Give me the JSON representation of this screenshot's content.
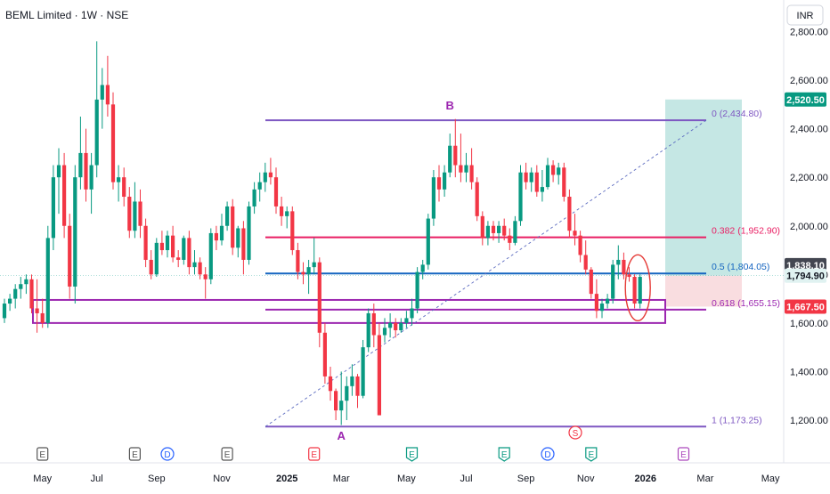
{
  "header": {
    "title": "BEML Limited · 1W · NSE",
    "currency": "INR"
  },
  "colors": {
    "up": "#089981",
    "down": "#f23645",
    "fib0": "#7e57c2",
    "fib382": "#e91e63",
    "fib05": "#1565c0",
    "fib618": "#9c27b0",
    "fib1": "#7e57c2",
    "zone": "#9c27b0",
    "target": "#b2dfdb",
    "stop": "#f8d7da",
    "circle": "#e53935",
    "event_grey": "#555555",
    "event_blue": "#2962ff",
    "event_green": "#089981",
    "event_purple": "#ab47bc",
    "event_red": "#f23645"
  },
  "price_tags": [
    {
      "text": "2,520.50",
      "price": 2520.5,
      "bg": "#089981"
    },
    {
      "text": "1,838.10",
      "price": 1838.1,
      "bg": "#434651"
    },
    {
      "text": "1,794.90",
      "price": 1794.9,
      "bg": "#e0f2f1",
      "fg": "#131722"
    },
    {
      "text": "1,667.50",
      "price": 1667.5,
      "bg": "#f23645"
    }
  ],
  "fib_levels": [
    {
      "label": "0 (2,434.80)",
      "price": 2434.8,
      "key": "fib0"
    },
    {
      "label": "0.382 (1,952.90)",
      "price": 1952.9,
      "key": "fib382"
    },
    {
      "label": "0.5 (1,804.05)",
      "price": 1804.05,
      "key": "fib05"
    },
    {
      "label": "0.618 (1,655.15)",
      "price": 1655.15,
      "key": "fib618"
    },
    {
      "label": "1 (1,173.25)",
      "price": 1173.25,
      "key": "fib1"
    }
  ],
  "wave_labels": [
    {
      "text": "A",
      "idx": 62,
      "price": 1120
    },
    {
      "text": "B",
      "idx": 82,
      "price": 2480
    }
  ],
  "events": [
    {
      "letter": "E",
      "idx": 7,
      "style": "grey"
    },
    {
      "letter": "E",
      "idx": 24,
      "style": "grey"
    },
    {
      "letter": "D",
      "idx": 30,
      "style": "blue"
    },
    {
      "letter": "E",
      "idx": 41,
      "style": "grey"
    },
    {
      "letter": "E",
      "idx": 57,
      "style": "red"
    },
    {
      "letter": "E",
      "idx": 75,
      "style": "green"
    },
    {
      "letter": "E",
      "idx": 92,
      "style": "green"
    },
    {
      "letter": "D",
      "idx": 100,
      "style": "blue"
    },
    {
      "letter": "E",
      "idx": 108,
      "style": "green"
    },
    {
      "letter": "E",
      "idx": 125,
      "style": "purple"
    }
  ],
  "chart_data": {
    "type": "candlestick",
    "title": "BEML Limited · 1W · NSE",
    "ylim": [
      1100,
      2850
    ],
    "y_ticks": [
      1200,
      1400,
      1600,
      1800,
      2000,
      2200,
      2400,
      2600,
      2800
    ],
    "y_tick_labels": [
      "1,200.00",
      "1,400.00",
      "1,600.00",
      "1,800.00",
      "2,000.00",
      "2,200.00",
      "2,400.00",
      "2,600.00",
      "2,800.00"
    ],
    "x_ticks": [
      {
        "label": "May",
        "idx": 7
      },
      {
        "label": "Jul",
        "idx": 17
      },
      {
        "label": "Sep",
        "idx": 28
      },
      {
        "label": "Nov",
        "idx": 40
      },
      {
        "label": "2025",
        "idx": 52,
        "bold": true
      },
      {
        "label": "Mar",
        "idx": 62
      },
      {
        "label": "May",
        "idx": 74
      },
      {
        "label": "Jul",
        "idx": 85
      },
      {
        "label": "Sep",
        "idx": 96
      },
      {
        "label": "Nov",
        "idx": 107
      },
      {
        "label": "2026",
        "idx": 118,
        "bold": true
      },
      {
        "label": "Mar",
        "idx": 129
      },
      {
        "label": "May",
        "idx": 141
      }
    ],
    "candles": [
      [
        1620,
        1700,
        1600,
        1680
      ],
      [
        1680,
        1720,
        1650,
        1700
      ],
      [
        1700,
        1760,
        1660,
        1740
      ],
      [
        1740,
        1790,
        1700,
        1760
      ],
      [
        1760,
        1800,
        1720,
        1780
      ],
      [
        1780,
        1800,
        1640,
        1660
      ],
      [
        1660,
        1780,
        1560,
        1640
      ],
      [
        1640,
        1700,
        1580,
        1600
      ],
      [
        1600,
        2000,
        1580,
        1950
      ],
      [
        1950,
        2250,
        1900,
        2200
      ],
      [
        2200,
        2320,
        2050,
        2250
      ],
      [
        2250,
        2300,
        1950,
        2000
      ],
      [
        2000,
        2050,
        1700,
        1750
      ],
      [
        1750,
        2250,
        1680,
        2200
      ],
      [
        2200,
        2450,
        2150,
        2300
      ],
      [
        2300,
        2400,
        2100,
        2150
      ],
      [
        2150,
        2300,
        2050,
        2250
      ],
      [
        2250,
        2760,
        2200,
        2520
      ],
      [
        2520,
        2650,
        2400,
        2580
      ],
      [
        2580,
        2700,
        2450,
        2500
      ],
      [
        2500,
        2550,
        2150,
        2180
      ],
      [
        2180,
        2250,
        2100,
        2200
      ],
      [
        2200,
        2240,
        2080,
        2120
      ],
      [
        2120,
        2160,
        1950,
        1980
      ],
      [
        1980,
        2180,
        1950,
        2100
      ],
      [
        2100,
        2150,
        1950,
        2000
      ],
      [
        2000,
        2030,
        1830,
        1860
      ],
      [
        1860,
        1900,
        1780,
        1800
      ],
      [
        1800,
        1950,
        1790,
        1930
      ],
      [
        1930,
        1980,
        1880,
        1900
      ],
      [
        1900,
        1980,
        1870,
        1960
      ],
      [
        1960,
        2000,
        1850,
        1870
      ],
      [
        1870,
        1900,
        1830,
        1860
      ],
      [
        1860,
        1960,
        1840,
        1950
      ],
      [
        1950,
        1980,
        1800,
        1830
      ],
      [
        1830,
        1900,
        1800,
        1850
      ],
      [
        1850,
        1870,
        1780,
        1800
      ],
      [
        1800,
        1830,
        1700,
        1780
      ],
      [
        1780,
        1990,
        1760,
        1970
      ],
      [
        1970,
        2000,
        1900,
        1940
      ],
      [
        1940,
        2050,
        1920,
        2000
      ],
      [
        2000,
        2100,
        1980,
        2080
      ],
      [
        2080,
        2110,
        1880,
        1910
      ],
      [
        1910,
        2000,
        1870,
        1990
      ],
      [
        1990,
        2020,
        1800,
        1860
      ],
      [
        1860,
        2100,
        1840,
        2080
      ],
      [
        2080,
        2180,
        2050,
        2150
      ],
      [
        2150,
        2220,
        2100,
        2180
      ],
      [
        2180,
        2260,
        2140,
        2220
      ],
      [
        2220,
        2280,
        2170,
        2200
      ],
      [
        2200,
        2240,
        2050,
        2080
      ],
      [
        2080,
        2120,
        2000,
        2040
      ],
      [
        2040,
        2080,
        1990,
        2060
      ],
      [
        2060,
        2080,
        1880,
        1900
      ],
      [
        1900,
        1930,
        1780,
        1810
      ],
      [
        1810,
        1850,
        1760,
        1800
      ],
      [
        1800,
        1860,
        1720,
        1830
      ],
      [
        1830,
        1950,
        1800,
        1850
      ],
      [
        1850,
        1870,
        1500,
        1560
      ],
      [
        1560,
        1600,
        1350,
        1380
      ],
      [
        1380,
        1420,
        1280,
        1320
      ],
      [
        1320,
        1330,
        1200,
        1240
      ],
      [
        1240,
        1400,
        1180,
        1280
      ],
      [
        1280,
        1380,
        1200,
        1340
      ],
      [
        1340,
        1430,
        1300,
        1380
      ],
      [
        1380,
        1390,
        1250,
        1300
      ],
      [
        1300,
        1530,
        1290,
        1500
      ],
      [
        1500,
        1660,
        1480,
        1640
      ],
      [
        1640,
        1680,
        1500,
        1550
      ],
      [
        1550,
        1600,
        1220,
        1220
      ],
      [
        1550,
        1620,
        1520,
        1580
      ],
      [
        1580,
        1640,
        1540,
        1600
      ],
      [
        1600,
        1620,
        1540,
        1570
      ],
      [
        1570,
        1620,
        1560,
        1600
      ],
      [
        1600,
        1650,
        1580,
        1620
      ],
      [
        1620,
        1700,
        1590,
        1660
      ],
      [
        1660,
        1830,
        1640,
        1810
      ],
      [
        1810,
        1860,
        1780,
        1840
      ],
      [
        1840,
        2050,
        1820,
        2030
      ],
      [
        2030,
        2230,
        2000,
        2200
      ],
      [
        2200,
        2250,
        2100,
        2150
      ],
      [
        2150,
        2250,
        2120,
        2220
      ],
      [
        2220,
        2380,
        2200,
        2330
      ],
      [
        2330,
        2440,
        2200,
        2250
      ],
      [
        2250,
        2380,
        2180,
        2220
      ],
      [
        2220,
        2300,
        2180,
        2250
      ],
      [
        2250,
        2320,
        2150,
        2180
      ],
      [
        2180,
        2200,
        2020,
        2040
      ],
      [
        2040,
        2060,
        1920,
        1950
      ],
      [
        1950,
        2020,
        1920,
        2000
      ],
      [
        2000,
        2020,
        1940,
        1970
      ],
      [
        1970,
        2020,
        1930,
        2000
      ],
      [
        2000,
        2030,
        1940,
        1960
      ],
      [
        1960,
        1990,
        1900,
        1930
      ],
      [
        1930,
        2040,
        1920,
        2020
      ],
      [
        2020,
        2250,
        2000,
        2220
      ],
      [
        2220,
        2260,
        2150,
        2180
      ],
      [
        2180,
        2240,
        2140,
        2220
      ],
      [
        2220,
        2250,
        2120,
        2140
      ],
      [
        2140,
        2230,
        2100,
        2160
      ],
      [
        2160,
        2280,
        2150,
        2250
      ],
      [
        2250,
        2270,
        2180,
        2210
      ],
      [
        2210,
        2260,
        2170,
        2240
      ],
      [
        2240,
        2260,
        2100,
        2120
      ],
      [
        2120,
        2150,
        1950,
        1980
      ],
      [
        1980,
        2050,
        1920,
        1960
      ],
      [
        1960,
        1980,
        1850,
        1880
      ],
      [
        1880,
        1940,
        1800,
        1820
      ],
      [
        1820,
        1830,
        1700,
        1720
      ],
      [
        1720,
        1780,
        1620,
        1650
      ],
      [
        1650,
        1700,
        1620,
        1680
      ],
      [
        1680,
        1720,
        1660,
        1700
      ],
      [
        1700,
        1860,
        1680,
        1840
      ],
      [
        1840,
        1920,
        1780,
        1860
      ],
      [
        1860,
        1890,
        1780,
        1800
      ],
      [
        1800,
        1830,
        1770,
        1790
      ],
      [
        1790,
        1800,
        1660,
        1680
      ],
      [
        1680,
        1800,
        1660,
        1790
      ]
    ]
  }
}
